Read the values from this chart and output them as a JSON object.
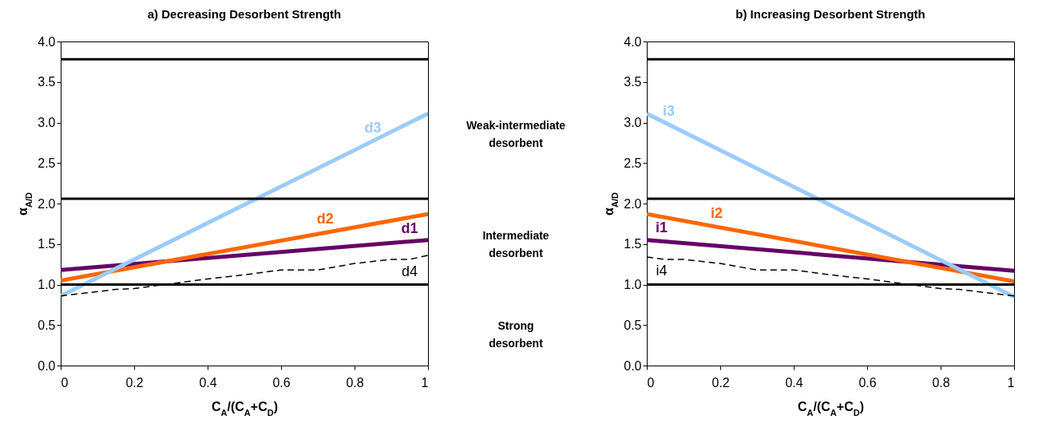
{
  "chart_data": [
    {
      "type": "line",
      "title": "a) Decreasing Desorbent Strength",
      "xlabel": "C$_{A}$/(C$_{A}$+C$_{D}$)",
      "ylabel": "α$_{A/D}$",
      "xlim": [
        0,
        1
      ],
      "xticks": [
        0,
        0.2,
        0.4,
        0.6,
        0.8,
        1
      ],
      "ylim": [
        0,
        4
      ],
      "yticks": [
        {
          "value": 0,
          "label": "0.0"
        },
        0.5,
        {
          "value": 1,
          "label": "1.0"
        },
        1.5,
        {
          "value": 2,
          "label": "2.0"
        },
        2.5,
        {
          "value": 3,
          "label": "3.0"
        },
        3.5,
        {
          "value": 4,
          "label": "4.0"
        }
      ],
      "grid": false,
      "marker": "none",
      "ref_lines": [
        {
          "axis": "y",
          "value": 3.78,
          "color": "#000000"
        },
        {
          "axis": "y",
          "value": 2.06,
          "color": "#000000"
        },
        {
          "axis": "y",
          "value": 1.0,
          "color": "#000000"
        }
      ],
      "annotations": [
        "Weak-intermediate desorbent",
        "Intermediate desorbent",
        "Strong desorbent"
      ],
      "series": [
        {
          "name": "d1",
          "color": "#660066",
          "x": [
            0,
            1
          ],
          "values": [
            1.18,
            1.55
          ]
        },
        {
          "name": "d2",
          "color": "#ff6600",
          "x": [
            0,
            1
          ],
          "values": [
            1.05,
            1.87
          ]
        },
        {
          "name": "d3",
          "color": "#99ccff",
          "x": [
            0,
            1
          ],
          "values": [
            0.86,
            3.11
          ]
        },
        {
          "name": "d4",
          "color": "#000000",
          "line_style": "dashed",
          "x": [
            0,
            0.15,
            0.2,
            0.3,
            0.4,
            0.5,
            0.6,
            0.7,
            0.8,
            0.9,
            0.95,
            1
          ],
          "values": [
            0.86,
            0.94,
            0.95,
            1.01,
            1.07,
            1.12,
            1.18,
            1.18,
            1.26,
            1.31,
            1.31,
            1.36
          ]
        }
      ]
    },
    {
      "type": "line",
      "title": "b) Increasing Desorbent Strength",
      "xlabel": "C$_{A}$/(C$_{A}$+C$_{D}$)",
      "ylabel": "α$_{A/D}$",
      "xlim": [
        0,
        1
      ],
      "xticks": [
        0,
        0.2,
        0.4,
        0.6,
        0.8,
        1
      ],
      "ylim": [
        0,
        4
      ],
      "yticks": [
        {
          "value": 0,
          "label": "0.0"
        },
        0.5,
        {
          "value": 1,
          "label": "1.0"
        },
        1.5,
        {
          "value": 2,
          "label": "2.0"
        },
        2.5,
        {
          "value": 3,
          "label": "3.0"
        },
        3.5,
        {
          "value": 4,
          "label": "4.0"
        }
      ],
      "grid": false,
      "marker": "none",
      "ref_lines": [
        {
          "axis": "y",
          "value": 3.78,
          "color": "#000000"
        },
        {
          "axis": "y",
          "value": 2.06,
          "color": "#000000"
        },
        {
          "axis": "y",
          "value": 1.0,
          "color": "#000000"
        }
      ],
      "series": [
        {
          "name": "i1",
          "color": "#660066",
          "x": [
            0,
            1
          ],
          "values": [
            1.55,
            1.17
          ]
        },
        {
          "name": "i2",
          "color": "#ff6600",
          "x": [
            0,
            1
          ],
          "values": [
            1.87,
            1.04
          ]
        },
        {
          "name": "i3",
          "color": "#99ccff",
          "x": [
            0,
            1
          ],
          "values": [
            3.11,
            0.85
          ]
        },
        {
          "name": "i4",
          "color": "#000000",
          "line_style": "dashed",
          "x": [
            0,
            0.05,
            0.1,
            0.2,
            0.3,
            0.4,
            0.5,
            0.6,
            0.7,
            0.8,
            0.85,
            1
          ],
          "values": [
            1.34,
            1.31,
            1.31,
            1.26,
            1.18,
            1.18,
            1.12,
            1.07,
            1.01,
            0.95,
            0.94,
            0.86
          ]
        }
      ]
    }
  ]
}
